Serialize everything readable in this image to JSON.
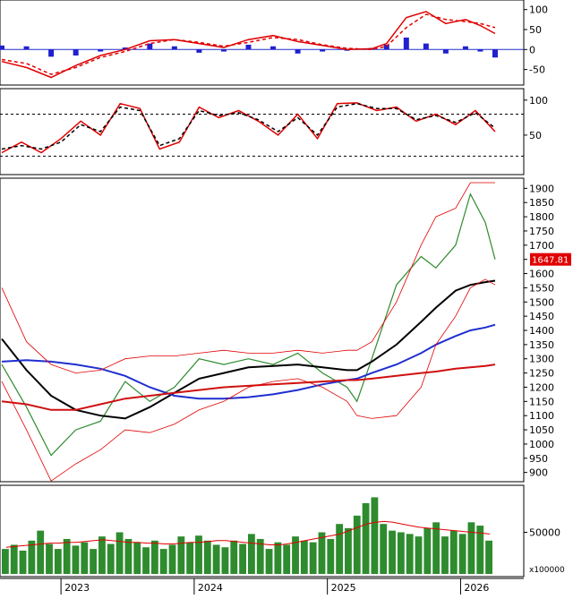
{
  "chart_data": [
    {
      "type": "line",
      "panel": "macd",
      "y_ticks": [
        "100",
        "50",
        "0",
        "-50"
      ],
      "ylim": [
        -80,
        115
      ],
      "x": [
        0,
        0.05,
        0.1,
        0.15,
        0.2,
        0.25,
        0.3,
        0.35,
        0.4,
        0.45,
        0.5,
        0.55,
        0.6,
        0.65,
        0.7,
        0.75,
        0.78,
        0.82,
        0.86,
        0.9,
        0.94,
        0.97,
        1.0
      ],
      "series": [
        {
          "color": "#e00000",
          "dash": false,
          "values": [
            -30,
            -45,
            -70,
            -40,
            -15,
            0,
            22,
            25,
            15,
            5,
            25,
            35,
            20,
            10,
            0,
            2,
            15,
            80,
            95,
            65,
            75,
            60,
            40
          ]
        },
        {
          "color": "#e00000",
          "dash": true,
          "values": [
            -25,
            -35,
            -62,
            -45,
            -20,
            -5,
            15,
            25,
            18,
            8,
            18,
            30,
            25,
            12,
            3,
            0,
            8,
            55,
            88,
            75,
            70,
            65,
            55
          ]
        }
      ],
      "histogram": [
        10,
        8,
        -18,
        -15,
        -5,
        5,
        15,
        8,
        -8,
        -5,
        12,
        8,
        -10,
        -5,
        -3,
        4,
        12,
        30,
        15,
        -10,
        8,
        -5,
        -20
      ],
      "histogram_color": "#2020d0"
    },
    {
      "type": "line",
      "panel": "stochastic",
      "y_ticks": [
        "100",
        "50"
      ],
      "ylim": [
        0,
        110
      ],
      "reference_lines": [
        80,
        20
      ],
      "x": [
        0,
        0.04,
        0.08,
        0.12,
        0.16,
        0.2,
        0.24,
        0.28,
        0.32,
        0.36,
        0.4,
        0.44,
        0.48,
        0.52,
        0.56,
        0.6,
        0.64,
        0.68,
        0.72,
        0.76,
        0.8,
        0.84,
        0.88,
        0.92,
        0.96,
        1.0
      ],
      "series": [
        {
          "color": "#e00000",
          "dash": false,
          "values": [
            25,
            40,
            25,
            45,
            70,
            50,
            95,
            88,
            30,
            40,
            90,
            75,
            85,
            70,
            50,
            80,
            45,
            95,
            96,
            85,
            90,
            70,
            80,
            65,
            85,
            55
          ]
        },
        {
          "color": "#000000",
          "dash": true,
          "values": [
            30,
            35,
            30,
            40,
            65,
            55,
            90,
            85,
            35,
            45,
            85,
            78,
            82,
            72,
            55,
            75,
            50,
            90,
            95,
            88,
            88,
            72,
            78,
            68,
            82,
            60
          ]
        }
      ]
    },
    {
      "type": "line",
      "panel": "price",
      "y_ticks": [
        "1900",
        "1850",
        "1800",
        "1750",
        "1700",
        "1650",
        "1600",
        "1550",
        "1500",
        "1450",
        "1400",
        "1350",
        "1300",
        "1250",
        "1200",
        "1150",
        "1100",
        "1050",
        "1000",
        "950",
        "900"
      ],
      "ylim": [
        880,
        1920
      ],
      "last_price_label": "1647.81",
      "last_price_color": "#e00000",
      "x": [
        0,
        0.05,
        0.1,
        0.15,
        0.2,
        0.25,
        0.3,
        0.35,
        0.4,
        0.45,
        0.5,
        0.55,
        0.6,
        0.65,
        0.7,
        0.72,
        0.75,
        0.8,
        0.85,
        0.88,
        0.92,
        0.95,
        0.98,
        1.0
      ],
      "series": [
        {
          "name": "price",
          "color": "#2e8b2e",
          "dash": false,
          "width": 1.2,
          "values": [
            1280,
            1130,
            960,
            1050,
            1080,
            1220,
            1150,
            1200,
            1300,
            1280,
            1300,
            1280,
            1320,
            1250,
            1200,
            1150,
            1300,
            1560,
            1660,
            1620,
            1700,
            1880,
            1780,
            1650
          ]
        },
        {
          "name": "ma_black",
          "color": "#000000",
          "dash": false,
          "width": 2,
          "values": [
            1370,
            1260,
            1170,
            1120,
            1100,
            1090,
            1130,
            1180,
            1230,
            1250,
            1270,
            1275,
            1280,
            1270,
            1260,
            1260,
            1290,
            1350,
            1430,
            1480,
            1540,
            1560,
            1570,
            1575
          ]
        },
        {
          "name": "ma_blue",
          "color": "#1f2fd0",
          "dash": false,
          "width": 2,
          "values": [
            1290,
            1295,
            1290,
            1280,
            1265,
            1240,
            1200,
            1170,
            1160,
            1160,
            1165,
            1175,
            1190,
            1210,
            1225,
            1230,
            1250,
            1280,
            1320,
            1350,
            1380,
            1400,
            1410,
            1420
          ]
        },
        {
          "name": "ma_red",
          "color": "#d01010",
          "dash": false,
          "width": 2,
          "values": [
            1150,
            1140,
            1120,
            1120,
            1140,
            1160,
            1170,
            1180,
            1190,
            1200,
            1205,
            1210,
            1215,
            1220,
            1225,
            1225,
            1230,
            1240,
            1250,
            1255,
            1265,
            1270,
            1275,
            1280
          ]
        },
        {
          "name": "bb_upper",
          "color": "#e00000",
          "dash": false,
          "width": 0.8,
          "values": [
            1550,
            1360,
            1280,
            1250,
            1260,
            1300,
            1310,
            1310,
            1320,
            1330,
            1320,
            1320,
            1330,
            1320,
            1330,
            1330,
            1360,
            1500,
            1700,
            1800,
            1830,
            1920,
            1920,
            1920
          ]
        },
        {
          "name": "bb_lower",
          "color": "#e00000",
          "dash": false,
          "width": 0.8,
          "values": [
            1220,
            1050,
            870,
            930,
            980,
            1050,
            1040,
            1070,
            1120,
            1150,
            1200,
            1220,
            1230,
            1200,
            1150,
            1100,
            1090,
            1100,
            1200,
            1350,
            1450,
            1550,
            1580,
            1560
          ]
        }
      ]
    },
    {
      "type": "bar",
      "panel": "volume",
      "y_ticks": [
        "50000"
      ],
      "y_unit": "x100000",
      "ylim": [
        0,
        100000
      ],
      "ma_color": "#e00000",
      "bar_color": "#2e8b2e",
      "values": [
        30000,
        35000,
        28000,
        40000,
        52000,
        36000,
        30000,
        42000,
        34000,
        38000,
        30000,
        45000,
        36000,
        50000,
        42000,
        38000,
        32000,
        40000,
        30000,
        35000,
        45000,
        38000,
        46000,
        40000,
        35000,
        32000,
        40000,
        36000,
        48000,
        42000,
        30000,
        38000,
        35000,
        45000,
        40000,
        38000,
        50000,
        42000,
        60000,
        55000,
        70000,
        85000,
        92000,
        60000,
        52000,
        50000,
        48000,
        45000,
        55000,
        62000,
        45000,
        52000,
        48000,
        62000,
        58000,
        40000
      ],
      "ma_values": [
        32000,
        33000,
        34000,
        35000,
        36000,
        37000,
        37000,
        38000,
        38000,
        39000,
        40000,
        41000,
        40000,
        39000,
        38000,
        38000,
        37000,
        37000,
        36000,
        36000,
        37000,
        38000,
        38000,
        39000,
        40000,
        40000,
        39000,
        38000,
        37000,
        36000,
        35000,
        35000,
        36000,
        38000,
        40000,
        42000,
        44000,
        46000,
        48000,
        52000,
        56000,
        60000,
        62000,
        63000,
        62000,
        60000,
        58000,
        56000,
        55000,
        54000,
        53000,
        52000,
        51000,
        50000,
        49000,
        48000
      ]
    }
  ],
  "x_axis": {
    "labels": [
      "2023",
      "2024",
      "2025",
      "2026"
    ],
    "positions": [
      0.12,
      0.39,
      0.66,
      0.93
    ]
  }
}
